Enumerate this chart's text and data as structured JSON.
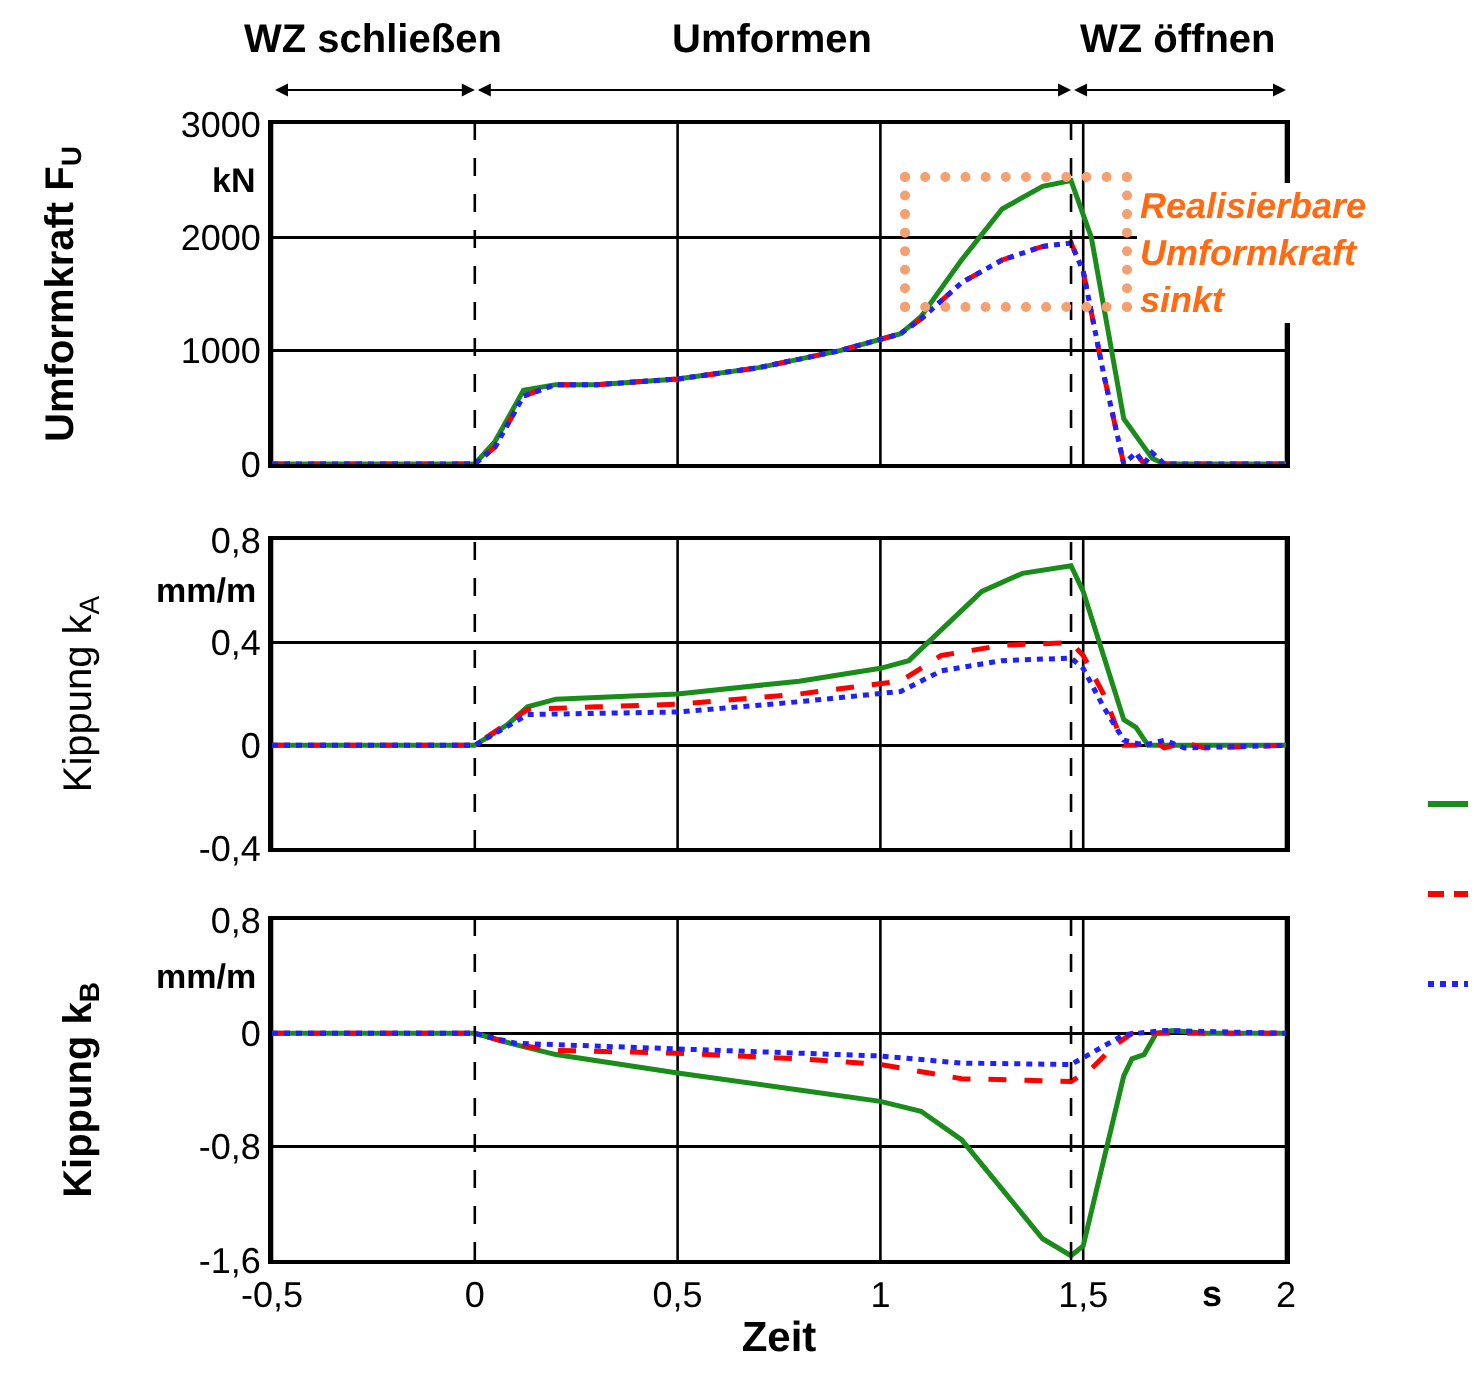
{
  "chart_data": [
    {
      "type": "line",
      "ylabel": "Umformkraft F$_{U}$",
      "xlim": [
        -0.5,
        2
      ],
      "xticks": [
        {
          "value": -0.5,
          "label": null
        },
        {
          "value": 0,
          "label": null
        },
        {
          "value": 0.5,
          "label": null
        },
        {
          "value": 1,
          "label": null
        },
        {
          "value": 1.5,
          "label": null
        },
        {
          "value": 2,
          "label": null
        }
      ],
      "ylim": [
        0,
        3000
      ],
      "yticks": [
        0,
        1000,
        2000,
        3000
      ],
      "grid": true,
      "tick_labels": "y",
      "series": [
        {
          "color": "#1a8c1a",
          "line_style": "solid",
          "x": [
            -0.5,
            0,
            0.05,
            0.12,
            0.2,
            0.3,
            0.5,
            0.7,
            0.9,
            1.05,
            1.1,
            1.2,
            1.3,
            1.4,
            1.47,
            1.52,
            1.57,
            1.6,
            1.63,
            1.67,
            1.7,
            2
          ],
          "values": [
            0,
            0,
            200,
            650,
            700,
            700,
            750,
            850,
            1000,
            1150,
            1300,
            1800,
            2250,
            2450,
            2500,
            2000,
            1000,
            400,
            250,
            50,
            0,
            0
          ]
        },
        {
          "color": "#ff0000",
          "line_style": "dashed",
          "x": [
            -0.5,
            0,
            0.05,
            0.12,
            0.2,
            0.3,
            0.5,
            0.7,
            0.9,
            1.05,
            1.1,
            1.2,
            1.3,
            1.4,
            1.47,
            1.5,
            1.55,
            1.6,
            1.63,
            1.65,
            1.67,
            1.7,
            2
          ],
          "values": [
            0,
            0,
            150,
            600,
            700,
            700,
            750,
            850,
            1000,
            1150,
            1280,
            1600,
            1800,
            1920,
            1950,
            1700,
            800,
            0,
            100,
            0,
            100,
            0,
            0
          ]
        },
        {
          "color": "#2020ff",
          "line_style": "dotted",
          "x": [
            -0.5,
            0,
            0.05,
            0.12,
            0.2,
            0.3,
            0.5,
            0.7,
            0.9,
            1.05,
            1.1,
            1.2,
            1.3,
            1.4,
            1.47,
            1.5,
            1.55,
            1.6,
            1.63,
            1.65,
            1.67,
            1.7,
            2
          ],
          "values": [
            0,
            0,
            150,
            600,
            700,
            700,
            750,
            850,
            1000,
            1150,
            1280,
            1600,
            1800,
            1920,
            1950,
            1700,
            800,
            0,
            100,
            0,
            100,
            0,
            0
          ]
        }
      ],
      "ref_lines": [
        {
          "axis": "x",
          "value": 0,
          "line_style": "dashed"
        },
        {
          "axis": "x",
          "value": 1.47,
          "line_style": "dashed"
        }
      ],
      "annotations": [
        "WZ schließen",
        "Umformen",
        "WZ öffnen",
        "kN",
        "Realisierbare Umformkraft sinkt"
      ]
    },
    {
      "type": "line",
      "ylabel": "Kippung k$_{A}$",
      "xlim": [
        -0.5,
        2
      ],
      "xticks": [
        {
          "value": -0.5,
          "label": null
        },
        {
          "value": 0,
          "label": null
        },
        {
          "value": 0.5,
          "label": null
        },
        {
          "value": 1,
          "label": null
        },
        {
          "value": 1.5,
          "label": null
        },
        {
          "value": 2,
          "label": null
        }
      ],
      "ylim": [
        -0.4,
        0.8
      ],
      "yticks": [
        {
          "value": -0.4,
          "label": "-0,4"
        },
        0,
        {
          "value": 0.4,
          "label": "0,4"
        },
        {
          "value": 0.8,
          "label": "0,8"
        }
      ],
      "grid": true,
      "tick_labels": "y",
      "series": [
        {
          "color": "#1a8c1a",
          "line_style": "solid",
          "x": [
            -0.5,
            0,
            0.08,
            0.13,
            0.2,
            0.5,
            0.8,
            1.0,
            1.07,
            1.15,
            1.25,
            1.35,
            1.47,
            1.5,
            1.55,
            1.6,
            1.63,
            1.66,
            2
          ],
          "values": [
            0,
            0,
            0.08,
            0.15,
            0.18,
            0.2,
            0.25,
            0.3,
            0.33,
            0.45,
            0.6,
            0.67,
            0.7,
            0.6,
            0.35,
            0.1,
            0.07,
            0,
            0
          ]
        },
        {
          "color": "#ff0000",
          "line_style": "dashed",
          "x": [
            -0.5,
            0,
            0.13,
            0.3,
            0.5,
            0.8,
            1.05,
            1.15,
            1.3,
            1.47,
            1.5,
            1.55,
            1.6,
            1.63,
            1.67,
            1.7,
            1.75,
            1.8,
            2
          ],
          "values": [
            0,
            0,
            0.14,
            0.15,
            0.16,
            0.2,
            0.25,
            0.35,
            0.39,
            0.4,
            0.35,
            0.2,
            0,
            0,
            0.02,
            -0.01,
            0.01,
            -0.01,
            0
          ]
        },
        {
          "color": "#2020ff",
          "line_style": "dotted",
          "x": [
            -0.5,
            0,
            0.13,
            0.5,
            0.8,
            1.05,
            1.15,
            1.3,
            1.47,
            1.5,
            1.55,
            1.6,
            1.65,
            1.7,
            1.75,
            2
          ],
          "values": [
            0,
            0,
            0.12,
            0.13,
            0.17,
            0.21,
            0.29,
            0.33,
            0.34,
            0.3,
            0.15,
            0.02,
            0,
            0.02,
            -0.01,
            0
          ]
        }
      ],
      "ref_lines": [
        {
          "axis": "x",
          "value": 0,
          "line_style": "dashed"
        },
        {
          "axis": "x",
          "value": 1.47,
          "line_style": "dashed"
        }
      ],
      "annotations": [
        "mm/m"
      ]
    },
    {
      "type": "line",
      "ylabel": "Kippung k$_{B}$",
      "xlabel": "Zeit",
      "xlim": [
        -0.5,
        2
      ],
      "xticks": [
        {
          "value": -0.5,
          "label": "-0,5"
        },
        0,
        {
          "value": 0.5,
          "label": "0,5"
        },
        1,
        {
          "value": 1.5,
          "label": "1,5"
        },
        2
      ],
      "ylim": [
        -1.6,
        0.8
      ],
      "yticks": [
        {
          "value": -1.6,
          "label": "-1,6"
        },
        {
          "value": -0.8,
          "label": "-0,8"
        },
        0,
        {
          "value": 0.8,
          "label": "0,8"
        }
      ],
      "grid": true,
      "series": [
        {
          "color": "#1a8c1a",
          "line_style": "solid",
          "x": [
            -0.5,
            0,
            0.1,
            0.2,
            0.5,
            0.8,
            1.0,
            1.1,
            1.2,
            1.3,
            1.4,
            1.47,
            1.5,
            1.55,
            1.6,
            1.62,
            1.65,
            1.68,
            1.72,
            1.8,
            2
          ],
          "values": [
            0,
            0,
            -0.08,
            -0.15,
            -0.28,
            -0.4,
            -0.48,
            -0.55,
            -0.75,
            -1.1,
            -1.45,
            -1.57,
            -1.5,
            -0.9,
            -0.3,
            -0.18,
            -0.15,
            0,
            0.02,
            0,
            0
          ]
        },
        {
          "color": "#ff0000",
          "line_style": "dashed",
          "x": [
            -0.5,
            0,
            0.1,
            0.2,
            0.5,
            0.8,
            1.0,
            1.2,
            1.47,
            1.52,
            1.58,
            1.62,
            1.7,
            2
          ],
          "values": [
            0,
            0,
            -0.08,
            -0.12,
            -0.14,
            -0.18,
            -0.22,
            -0.32,
            -0.34,
            -0.25,
            -0.08,
            0,
            0,
            0
          ]
        },
        {
          "color": "#2020ff",
          "line_style": "dotted",
          "x": [
            -0.5,
            0,
            0.1,
            0.5,
            1.0,
            1.2,
            1.47,
            1.52,
            1.6,
            1.7,
            2
          ],
          "values": [
            0,
            0,
            -0.07,
            -0.11,
            -0.16,
            -0.21,
            -0.22,
            -0.14,
            -0.01,
            0.02,
            0
          ]
        }
      ],
      "ref_lines": [
        {
          "axis": "x",
          "value": 0,
          "line_style": "dashed"
        },
        {
          "axis": "x",
          "value": 1.47,
          "line_style": "dashed"
        }
      ],
      "annotations": [
        "mm/m",
        "s"
      ]
    }
  ]
}
